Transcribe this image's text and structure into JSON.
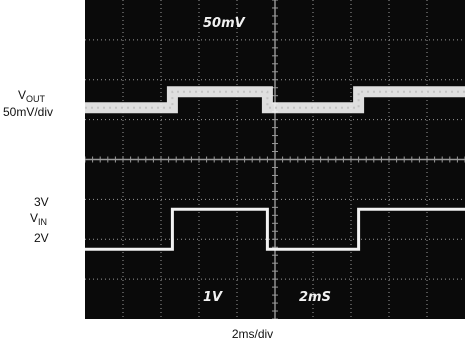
{
  "chart_data": {
    "type": "line",
    "title": "",
    "xlabel": "2ms/div",
    "ylabel": "",
    "x_unit": "ms",
    "x_range": [
      0,
      20
    ],
    "grid": true,
    "divisions": {
      "x": 10,
      "y": 8
    },
    "colors": {
      "screen": "#0a0a0a",
      "trace": "#f2f2f2",
      "grid": "#9a9a9a"
    },
    "scope_readouts": {
      "top": "50mV",
      "ch_scale": "1V",
      "timebase": "2mS"
    },
    "series": [
      {
        "key": "vout",
        "label_main": "V",
        "label_sub": "OUT",
        "scale_label": "50mV/div",
        "display_level_div": 2.7,
        "x": [
          0,
          4.6,
          4.6,
          9.6,
          9.6,
          14.4,
          14.4,
          20
        ],
        "y": [
          0,
          0,
          0.02,
          0.02,
          0,
          0,
          0.02,
          0.02
        ]
      },
      {
        "key": "vin",
        "label_main": "V",
        "label_sub": "IN",
        "x": [
          0,
          4.6,
          4.6,
          9.6,
          9.6,
          14.4,
          14.4,
          20
        ],
        "y": [
          2,
          2,
          3,
          3,
          2,
          2,
          3,
          3
        ]
      }
    ],
    "vin_levels": [
      {
        "label": "3V",
        "value": 3
      },
      {
        "label": "2V",
        "value": 2
      }
    ]
  }
}
